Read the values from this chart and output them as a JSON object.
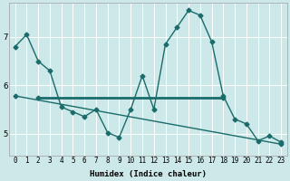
{
  "xlabel": "Humidex (Indice chaleur)",
  "bg_color": "#cce8e8",
  "line_color": "#1a6b6b",
  "grid_color": "#ffffff",
  "xlim": [
    -0.5,
    23.5
  ],
  "ylim": [
    4.55,
    7.7
  ],
  "yticks": [
    5,
    6,
    7
  ],
  "xticks": [
    0,
    1,
    2,
    3,
    4,
    5,
    6,
    7,
    8,
    9,
    10,
    11,
    12,
    13,
    14,
    15,
    16,
    17,
    18,
    19,
    20,
    21,
    22,
    23
  ],
  "series1_x": [
    0,
    1,
    2,
    3,
    4,
    5,
    6,
    7,
    8,
    9,
    10,
    11,
    12,
    13,
    14,
    15,
    16,
    17,
    18,
    19,
    20,
    21,
    22,
    23
  ],
  "series1_y": [
    6.8,
    7.05,
    6.5,
    6.3,
    5.55,
    5.45,
    5.35,
    5.5,
    5.02,
    4.92,
    5.5,
    6.2,
    5.5,
    6.85,
    7.2,
    7.55,
    7.45,
    6.9,
    5.78,
    5.3,
    5.2,
    4.85,
    4.95,
    4.82
  ],
  "series2_x": [
    2,
    18
  ],
  "series2_y": [
    5.75,
    5.75
  ],
  "series2_lw": 2.0,
  "series3_x": [
    0,
    23
  ],
  "series3_y": [
    5.78,
    4.78
  ],
  "series3_lw": 1.0,
  "marker_size": 2.5,
  "xlabel_fontsize": 6.5,
  "tick_fontsize": 5.5,
  "ytick_fontsize": 6.5
}
